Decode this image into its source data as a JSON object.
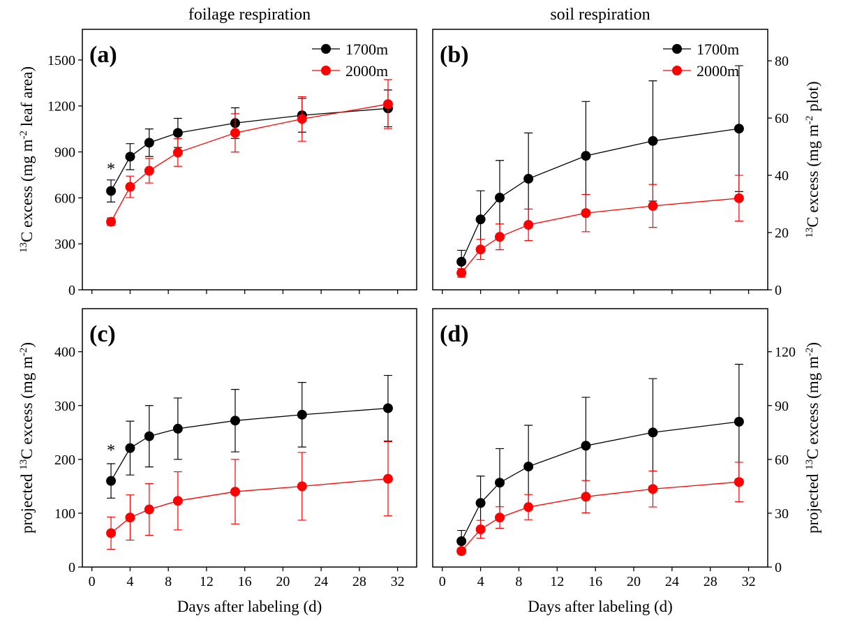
{
  "chart_data": [
    {
      "type": "line",
      "title": "foilage respiration",
      "panel_label": "(a)",
      "ylabel": [
        {
          "text": "13",
          "sup": true
        },
        {
          "text": "C excess (mg m"
        },
        {
          "text": "-2",
          "sup": true
        },
        {
          "text": " leaf area)"
        }
      ],
      "yaxis_side": "left",
      "xticklabels": false,
      "legend": "upper right",
      "x": [
        2,
        4,
        6,
        9,
        15,
        22,
        31
      ],
      "xlim": [
        -1,
        34
      ],
      "xticks": [
        0,
        4,
        8,
        12,
        16,
        20,
        24,
        28,
        32
      ],
      "ylim": [
        0,
        1700
      ],
      "yticks": [
        0,
        300,
        600,
        900,
        1200,
        1500
      ],
      "series": [
        {
          "name": "1700m",
          "color": "#000000",
          "values": [
            645,
            869,
            960,
            1024,
            1088,
            1139,
            1184
          ],
          "errors": [
            72,
            85,
            90,
            95,
            100,
            110,
            120
          ]
        },
        {
          "name": "2000m",
          "color": "#ff0000",
          "values": [
            444,
            672,
            777,
            896,
            1024,
            1115,
            1212
          ],
          "errors": [
            25,
            70,
            80,
            90,
            125,
            145,
            160
          ]
        }
      ],
      "annotations": [
        {
          "text": "*",
          "x": 2,
          "y": 800
        }
      ]
    },
    {
      "type": "line",
      "title": "soil respiration",
      "panel_label": "(b)",
      "ylabel": [
        {
          "text": "13",
          "sup": true
        },
        {
          "text": "C excess (mg m"
        },
        {
          "text": "-2",
          "sup": true
        },
        {
          "text": " plot)"
        }
      ],
      "yaxis_side": "right",
      "xticklabels": false,
      "legend": "upper right",
      "x": [
        2,
        4,
        6,
        9,
        15,
        22,
        31
      ],
      "xlim": [
        -1,
        34
      ],
      "xticks": [
        0,
        4,
        8,
        12,
        16,
        20,
        24,
        28,
        32
      ],
      "ylim": [
        0,
        91
      ],
      "yticks": [
        0,
        20,
        40,
        60,
        80
      ],
      "series": [
        {
          "name": "1700m",
          "color": "#000000",
          "values": [
            9.8,
            24.6,
            32.2,
            38.8,
            46.8,
            52,
            56.3
          ],
          "errors": [
            4,
            10,
            13,
            16,
            19,
            21,
            22
          ]
        },
        {
          "name": "2000m",
          "color": "#ff0000",
          "values": [
            5.9,
            14.1,
            18.5,
            22.7,
            26.8,
            29.3,
            32
          ],
          "errors": [
            1.5,
            3.5,
            4.5,
            5.5,
            6.5,
            7.5,
            8
          ]
        }
      ]
    },
    {
      "type": "line",
      "panel_label": "(c)",
      "ylabel": [
        {
          "text": "projected "
        },
        {
          "text": "13",
          "sup": true
        },
        {
          "text": "C excess (mg m"
        },
        {
          "text": "-2",
          "sup": true
        },
        {
          "text": ")"
        }
      ],
      "xlabel": "Days after labeling (d)",
      "yaxis_side": "left",
      "x": [
        2,
        4,
        6,
        9,
        15,
        22,
        31
      ],
      "xlim": [
        -1,
        34
      ],
      "xticks": [
        0,
        4,
        8,
        12,
        16,
        20,
        24,
        28,
        32
      ],
      "ylim": [
        0,
        480
      ],
      "yticks": [
        0,
        100,
        200,
        300,
        400
      ],
      "series": [
        {
          "color": "#000000",
          "values": [
            160,
            221,
            243,
            257,
            272,
            283,
            295
          ],
          "errors": [
            32,
            50,
            57,
            57,
            58,
            60,
            61
          ]
        },
        {
          "color": "#ff0000",
          "values": [
            63,
            92,
            107,
            123,
            140,
            150,
            164
          ],
          "errors": [
            30,
            42,
            48,
            54,
            60,
            63,
            69
          ]
        }
      ],
      "annotations": [
        {
          "text": "*",
          "x": 2,
          "y": 220
        }
      ]
    },
    {
      "type": "line",
      "panel_label": "(d)",
      "ylabel": [
        {
          "text": "projected "
        },
        {
          "text": "13",
          "sup": true
        },
        {
          "text": "C excess (mg m"
        },
        {
          "text": "-2",
          "sup": true
        },
        {
          "text": ")"
        }
      ],
      "xlabel": "Days after labeling (d)",
      "yaxis_side": "right",
      "x": [
        2,
        4,
        6,
        9,
        15,
        22,
        31
      ],
      "xlim": [
        -1,
        34
      ],
      "xticks": [
        0,
        4,
        8,
        12,
        16,
        20,
        24,
        28,
        32
      ],
      "ylim": [
        0,
        144
      ],
      "yticks": [
        0,
        30,
        60,
        90,
        120
      ],
      "series": [
        {
          "color": "#000000",
          "values": [
            14.4,
            35.7,
            47,
            56,
            67.6,
            75,
            81
          ],
          "errors": [
            6,
            15,
            19,
            23,
            27,
            30,
            32
          ]
        },
        {
          "color": "#ff0000",
          "values": [
            8.9,
            21,
            27.6,
            33.4,
            39.2,
            43.5,
            47.4
          ],
          "errors": [
            1.5,
            5,
            6,
            7,
            9,
            10,
            11
          ]
        }
      ]
    }
  ]
}
